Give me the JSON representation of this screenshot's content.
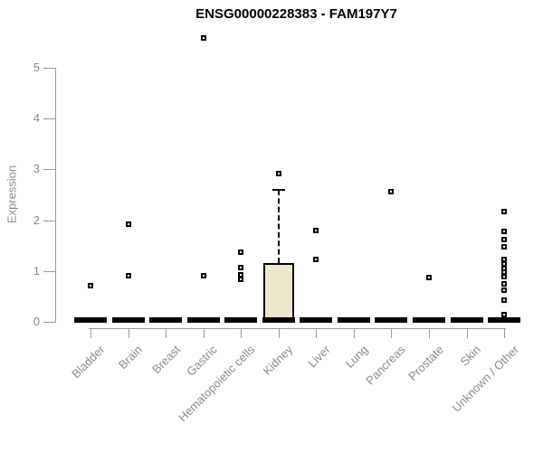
{
  "colors": {
    "box_fill": "#ede7ce",
    "box_border": "#000000",
    "point": "#000000",
    "axis_line": "#9a9a9a",
    "label_text": "#8c8c8c",
    "title_text": "#000000",
    "background": "#ffffff"
  },
  "chart_data": {
    "type": "boxplot",
    "title": "ENSG00000228383 - FAM197Y7",
    "xlabel": "",
    "ylabel": "Expression",
    "ylim": [
      0,
      5
    ],
    "yticks": [
      0,
      1,
      2,
      3,
      4,
      5
    ],
    "grid": "off",
    "legend": "none",
    "categories": [
      "Bladder",
      "Brain",
      "Breast",
      "Gastric",
      "Hematopoietic cells",
      "Kidney",
      "Liver",
      "Lung",
      "Pancreas",
      "Prostate",
      "Skin",
      "Unknown / Other"
    ],
    "series": [
      {
        "name": "Bladder",
        "whisker_low": 0,
        "q1": 0,
        "median": 0,
        "q3": 0,
        "whisker_high": 0,
        "outliers": [
          0.72
        ]
      },
      {
        "name": "Brain",
        "whisker_low": 0,
        "q1": 0,
        "median": 0,
        "q3": 0,
        "whisker_high": 0,
        "outliers": [
          1.93,
          0.91
        ]
      },
      {
        "name": "Breast",
        "whisker_low": 0,
        "q1": 0,
        "median": 0,
        "q3": 0,
        "whisker_high": 0,
        "outliers": []
      },
      {
        "name": "Gastric",
        "whisker_low": 0,
        "q1": 0,
        "median": 0,
        "q3": 0,
        "whisker_high": 0,
        "outliers": [
          5.59,
          0.9
        ]
      },
      {
        "name": "Hematopoietic cells",
        "whisker_low": 0,
        "q1": 0,
        "median": 0,
        "q3": 0,
        "whisker_high": 0,
        "outliers": [
          1.37,
          1.07,
          0.93,
          0.84
        ]
      },
      {
        "name": "Kidney",
        "whisker_low": 0,
        "q1": 0,
        "median": 0,
        "q3": 1.16,
        "whisker_high": 2.6,
        "outliers": [
          2.92
        ]
      },
      {
        "name": "Liver",
        "whisker_low": 0,
        "q1": 0,
        "median": 0,
        "q3": 0,
        "whisker_high": 0,
        "outliers": [
          1.8,
          1.22
        ]
      },
      {
        "name": "Lung",
        "whisker_low": 0,
        "q1": 0,
        "median": 0,
        "q3": 0,
        "whisker_high": 0,
        "outliers": []
      },
      {
        "name": "Pancreas",
        "whisker_low": 0,
        "q1": 0,
        "median": 0,
        "q3": 0,
        "whisker_high": 0,
        "outliers": [
          2.57
        ]
      },
      {
        "name": "Prostate",
        "whisker_low": 0,
        "q1": 0,
        "median": 0,
        "q3": 0,
        "whisker_high": 0,
        "outliers": [
          0.87
        ]
      },
      {
        "name": "Skin",
        "whisker_low": 0,
        "q1": 0,
        "median": 0,
        "q3": 0,
        "whisker_high": 0,
        "outliers": []
      },
      {
        "name": "Unknown / Other",
        "whisker_low": 0,
        "q1": 0,
        "median": 0,
        "q3": 0,
        "whisker_high": 0,
        "outliers": [
          2.17,
          1.78,
          1.62,
          1.48,
          1.22,
          1.13,
          1.05,
          0.97,
          0.89,
          0.75,
          0.63,
          0.42,
          0.15
        ]
      }
    ]
  }
}
